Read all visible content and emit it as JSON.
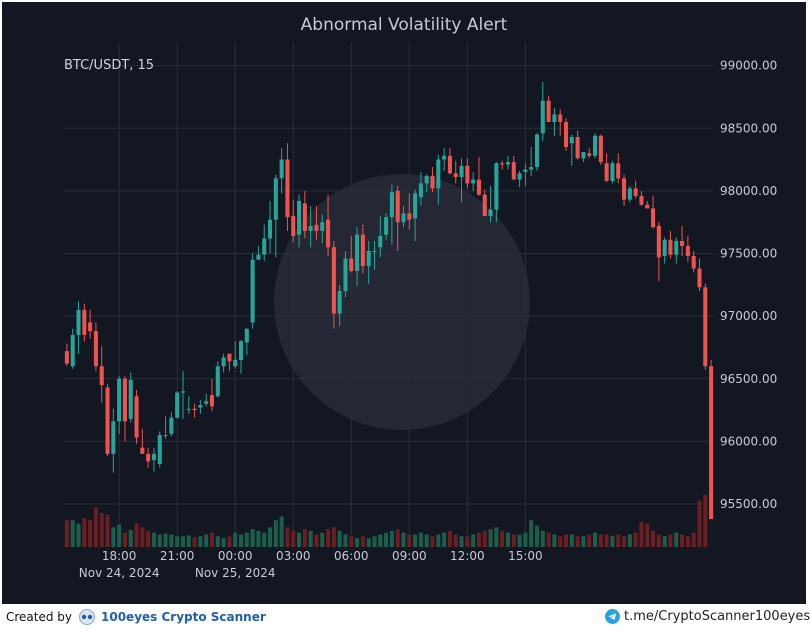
{
  "chart_data": {
    "type": "candlestick",
    "title": "Abnormal Volatility Alert",
    "symbol_label": "BTC/USDT, 15",
    "ylim": [
      95200,
      99200
    ],
    "y_ticks": [
      "95500.00",
      "96000.00",
      "96500.00",
      "97000.00",
      "97500.00",
      "98000.00",
      "98500.00",
      "99000.00"
    ],
    "y_tick_values": [
      95500,
      96000,
      96500,
      97000,
      97500,
      98000,
      98500,
      99000
    ],
    "x_ticks": [
      {
        "label": "18:00",
        "date": "Nov 24, 2024",
        "index": 9
      },
      {
        "label": "21:00",
        "date": "",
        "index": 19
      },
      {
        "label": "00:00",
        "date": "Nov 25, 2024",
        "index": 29
      },
      {
        "label": "03:00",
        "date": "",
        "index": 39
      },
      {
        "label": "06:00",
        "date": "",
        "index": 49
      },
      {
        "label": "09:00",
        "date": "",
        "index": 59
      },
      {
        "label": "12:00",
        "date": "",
        "index": 69
      },
      {
        "label": "15:00",
        "date": "",
        "index": 79
      }
    ],
    "candles": [
      [
        96720,
        96780,
        96600,
        96620
      ],
      [
        96600,
        96900,
        96580,
        96850
      ],
      [
        96850,
        97120,
        96700,
        97050
      ],
      [
        97050,
        97100,
        96800,
        96850
      ],
      [
        96950,
        97050,
        96820,
        96880
      ],
      [
        96880,
        96950,
        96560,
        96600
      ],
      [
        96600,
        96760,
        96310,
        96450
      ],
      [
        96430,
        96460,
        95880,
        95900
      ],
      [
        95900,
        96260,
        95750,
        96160
      ],
      [
        96160,
        96520,
        96060,
        96500
      ],
      [
        96500,
        96520,
        96000,
        96160
      ],
      [
        96180,
        96550,
        96150,
        96490
      ],
      [
        96360,
        96410,
        95980,
        96030
      ],
      [
        95950,
        96100,
        95900,
        95900
      ],
      [
        95900,
        95950,
        95790,
        95840
      ],
      [
        95850,
        95950,
        95760,
        95900
      ],
      [
        95820,
        96080,
        95790,
        96050
      ],
      [
        96050,
        96200,
        96020,
        96050
      ],
      [
        96060,
        96230,
        96040,
        96190
      ],
      [
        96190,
        96400,
        96180,
        96390
      ],
      [
        96390,
        96560,
        96180,
        96400
      ],
      [
        96260,
        96360,
        96220,
        96260
      ],
      [
        96260,
        96300,
        96190,
        96250
      ],
      [
        96270,
        96330,
        96220,
        96290
      ],
      [
        96300,
        96380,
        96280,
        96320
      ],
      [
        96370,
        96500,
        96240,
        96280
      ],
      [
        96360,
        96640,
        96350,
        96600
      ],
      [
        96600,
        96700,
        96550,
        96670
      ],
      [
        96700,
        96700,
        96560,
        96640
      ],
      [
        96600,
        96800,
        96580,
        96650
      ],
      [
        96650,
        96810,
        96540,
        96800
      ],
      [
        96790,
        96900,
        96690,
        96900
      ],
      [
        96950,
        97500,
        96900,
        97450
      ],
      [
        97450,
        97560,
        97470,
        97490
      ],
      [
        97490,
        97730,
        97440,
        97620
      ],
      [
        97620,
        97920,
        97500,
        97770
      ],
      [
        97770,
        98130,
        97470,
        98100
      ],
      [
        98100,
        98340,
        97980,
        98250
      ],
      [
        98250,
        98380,
        97680,
        97790
      ],
      [
        97800,
        97930,
        97590,
        97640
      ],
      [
        97650,
        97970,
        97550,
        97920
      ],
      [
        97900,
        98000,
        97620,
        97680
      ],
      [
        97680,
        97880,
        97550,
        97720
      ],
      [
        97730,
        97880,
        97610,
        97680
      ],
      [
        97680,
        97810,
        97580,
        97750
      ],
      [
        97770,
        97970,
        97480,
        97550
      ],
      [
        97550,
        97600,
        96900,
        97020
      ],
      [
        97020,
        97250,
        96920,
        97200
      ],
      [
        97200,
        97520,
        97150,
        97460
      ],
      [
        97460,
        97640,
        97350,
        97360
      ],
      [
        97360,
        97710,
        97240,
        97650
      ],
      [
        97650,
        97730,
        97340,
        97400
      ],
      [
        97400,
        97600,
        97260,
        97520
      ],
      [
        97520,
        97600,
        97370,
        97520
      ],
      [
        97550,
        97800,
        97470,
        97640
      ],
      [
        97650,
        97820,
        97610,
        97790
      ],
      [
        97790,
        98050,
        97570,
        97990
      ],
      [
        98000,
        98040,
        97520,
        97750
      ],
      [
        97750,
        97880,
        97710,
        97820
      ],
      [
        97820,
        97980,
        97690,
        97770
      ],
      [
        97780,
        98010,
        97600,
        97980
      ],
      [
        97950,
        98150,
        97880,
        98060
      ],
      [
        98060,
        98130,
        97990,
        98120
      ],
      [
        98120,
        98190,
        97990,
        98020
      ],
      [
        98020,
        98290,
        97890,
        98250
      ],
      [
        98250,
        98340,
        98160,
        98280
      ],
      [
        98280,
        98340,
        98130,
        98140
      ],
      [
        98140,
        98240,
        98060,
        98110
      ],
      [
        98110,
        98260,
        97910,
        98200
      ],
      [
        98200,
        98260,
        98020,
        98060
      ],
      [
        98060,
        98150,
        98000,
        98090
      ],
      [
        98090,
        98270,
        97960,
        97970
      ],
      [
        97970,
        98010,
        97800,
        97800
      ],
      [
        97800,
        98040,
        97750,
        97850
      ],
      [
        97850,
        98230,
        97750,
        98220
      ],
      [
        98220,
        98240,
        98170,
        98210
      ],
      [
        98210,
        98280,
        98170,
        98230
      ],
      [
        98230,
        98280,
        98090,
        98090
      ],
      [
        98090,
        98160,
        98030,
        98140
      ],
      [
        98150,
        98220,
        98040,
        98170
      ],
      [
        98170,
        98350,
        98120,
        98190
      ],
      [
        98190,
        98460,
        98160,
        98450
      ],
      [
        98460,
        98870,
        98400,
        98720
      ],
      [
        98720,
        98760,
        98550,
        98550
      ],
      [
        98550,
        98660,
        98440,
        98610
      ],
      [
        98610,
        98650,
        98440,
        98550
      ],
      [
        98550,
        98580,
        98320,
        98350
      ],
      [
        98380,
        98450,
        98200,
        98430
      ],
      [
        98430,
        98480,
        98250,
        98260
      ],
      [
        98260,
        98310,
        98230,
        98310
      ],
      [
        98300,
        98340,
        98260,
        98280
      ],
      [
        98280,
        98460,
        98260,
        98440
      ],
      [
        98440,
        98450,
        98210,
        98230
      ],
      [
        98220,
        98300,
        98070,
        98080
      ],
      [
        98080,
        98240,
        98060,
        98220
      ],
      [
        98220,
        98300,
        98060,
        98100
      ],
      [
        98100,
        98130,
        97880,
        97930
      ],
      [
        97930,
        98040,
        97910,
        98020
      ],
      [
        98020,
        98080,
        97940,
        97960
      ],
      [
        97960,
        98000,
        97880,
        97890
      ],
      [
        97890,
        97920,
        97860,
        97860
      ],
      [
        97860,
        97960,
        97700,
        97710
      ],
      [
        97720,
        97750,
        97280,
        97470
      ],
      [
        97480,
        97630,
        97420,
        97610
      ],
      [
        97610,
        97680,
        97460,
        97490
      ],
      [
        97490,
        97630,
        97420,
        97600
      ],
      [
        97600,
        97720,
        97480,
        97560
      ],
      [
        97560,
        97640,
        97430,
        97480
      ],
      [
        97480,
        97520,
        97350,
        97380
      ],
      [
        97380,
        97460,
        97200,
        97230
      ],
      [
        97230,
        97260,
        96570,
        96600
      ],
      [
        96600,
        96650,
        95380,
        95380
      ]
    ],
    "volumes": [
      30,
      30,
      26,
      32,
      30,
      44,
      38,
      36,
      22,
      25,
      16,
      19,
      26,
      22,
      18,
      16,
      14,
      15,
      14,
      12,
      12,
      13,
      11,
      12,
      14,
      16,
      12,
      10,
      12,
      16,
      14,
      16,
      20,
      18,
      16,
      22,
      30,
      34,
      22,
      18,
      16,
      20,
      18,
      14,
      16,
      20,
      22,
      18,
      14,
      12,
      10,
      12,
      10,
      12,
      14,
      16,
      18,
      20,
      16,
      14,
      14,
      16,
      14,
      12,
      14,
      16,
      18,
      14,
      12,
      12,
      14,
      16,
      18,
      20,
      22,
      18,
      16,
      14,
      14,
      16,
      30,
      24,
      18,
      16,
      14,
      12,
      14,
      14,
      12,
      12,
      14,
      16,
      14,
      14,
      12,
      14,
      12,
      14,
      16,
      28,
      26,
      18,
      14,
      12,
      14,
      16,
      14,
      12,
      16,
      52,
      58
    ]
  },
  "footer": {
    "created_by": "Created by",
    "brand": "100eyes Crypto Scanner",
    "telegram": "t.me/CryptoScanner100eyes"
  },
  "colors": {
    "up": "#26a69a",
    "down": "#ef5350",
    "up_vol": "#1b5e4a",
    "down_vol": "#6b1f22",
    "grid": "#2a2e39",
    "text": "#c7cad1"
  }
}
